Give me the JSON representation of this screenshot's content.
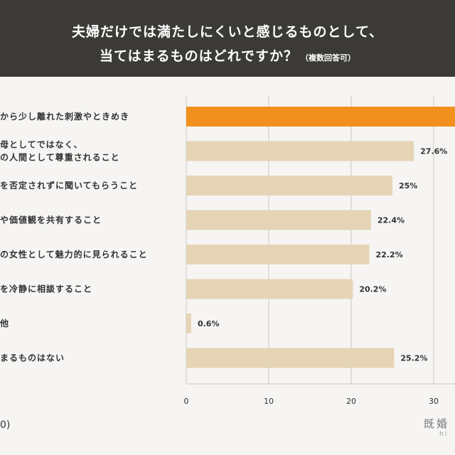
{
  "title": {
    "line1": "夫婦だけでは満たしにくいと感じるものとして、",
    "line2": "当てはまるものはどれですか？",
    "note": "（複数回答可）"
  },
  "footer": {
    "n_label": "0)"
  },
  "logo": {
    "text": "既婚",
    "sub": "hi"
  },
  "chart_data": {
    "type": "bar",
    "orientation": "horizontal",
    "categories": [
      [
        "から少し離れた刺激やときめき"
      ],
      [
        "母としてではなく、",
        "の人間として尊重されること"
      ],
      [
        "を否定されずに聞いてもらうこと"
      ],
      [
        "や価値観を共有すること"
      ],
      [
        "の女性として魅力的に見られること"
      ],
      [
        "を冷静に相談すること"
      ],
      [
        "他"
      ],
      [
        "まるものはない"
      ]
    ],
    "values": [
      38,
      27.6,
      25,
      22.4,
      22.2,
      20.2,
      0.6,
      25.2
    ],
    "value_labels": [
      "",
      "27.6%",
      "25%",
      "22.4%",
      "22.2%",
      "20.2%",
      "0.6%",
      "25.2%"
    ],
    "highlight_index": 0,
    "xticks": [
      0,
      10,
      20,
      30
    ],
    "xlim": [
      0,
      33
    ],
    "grid": true,
    "colors": {
      "bar": "#e5d4b5",
      "highlight": "#f2901e",
      "grid": "#c8c6c2",
      "label": "#333333"
    }
  }
}
